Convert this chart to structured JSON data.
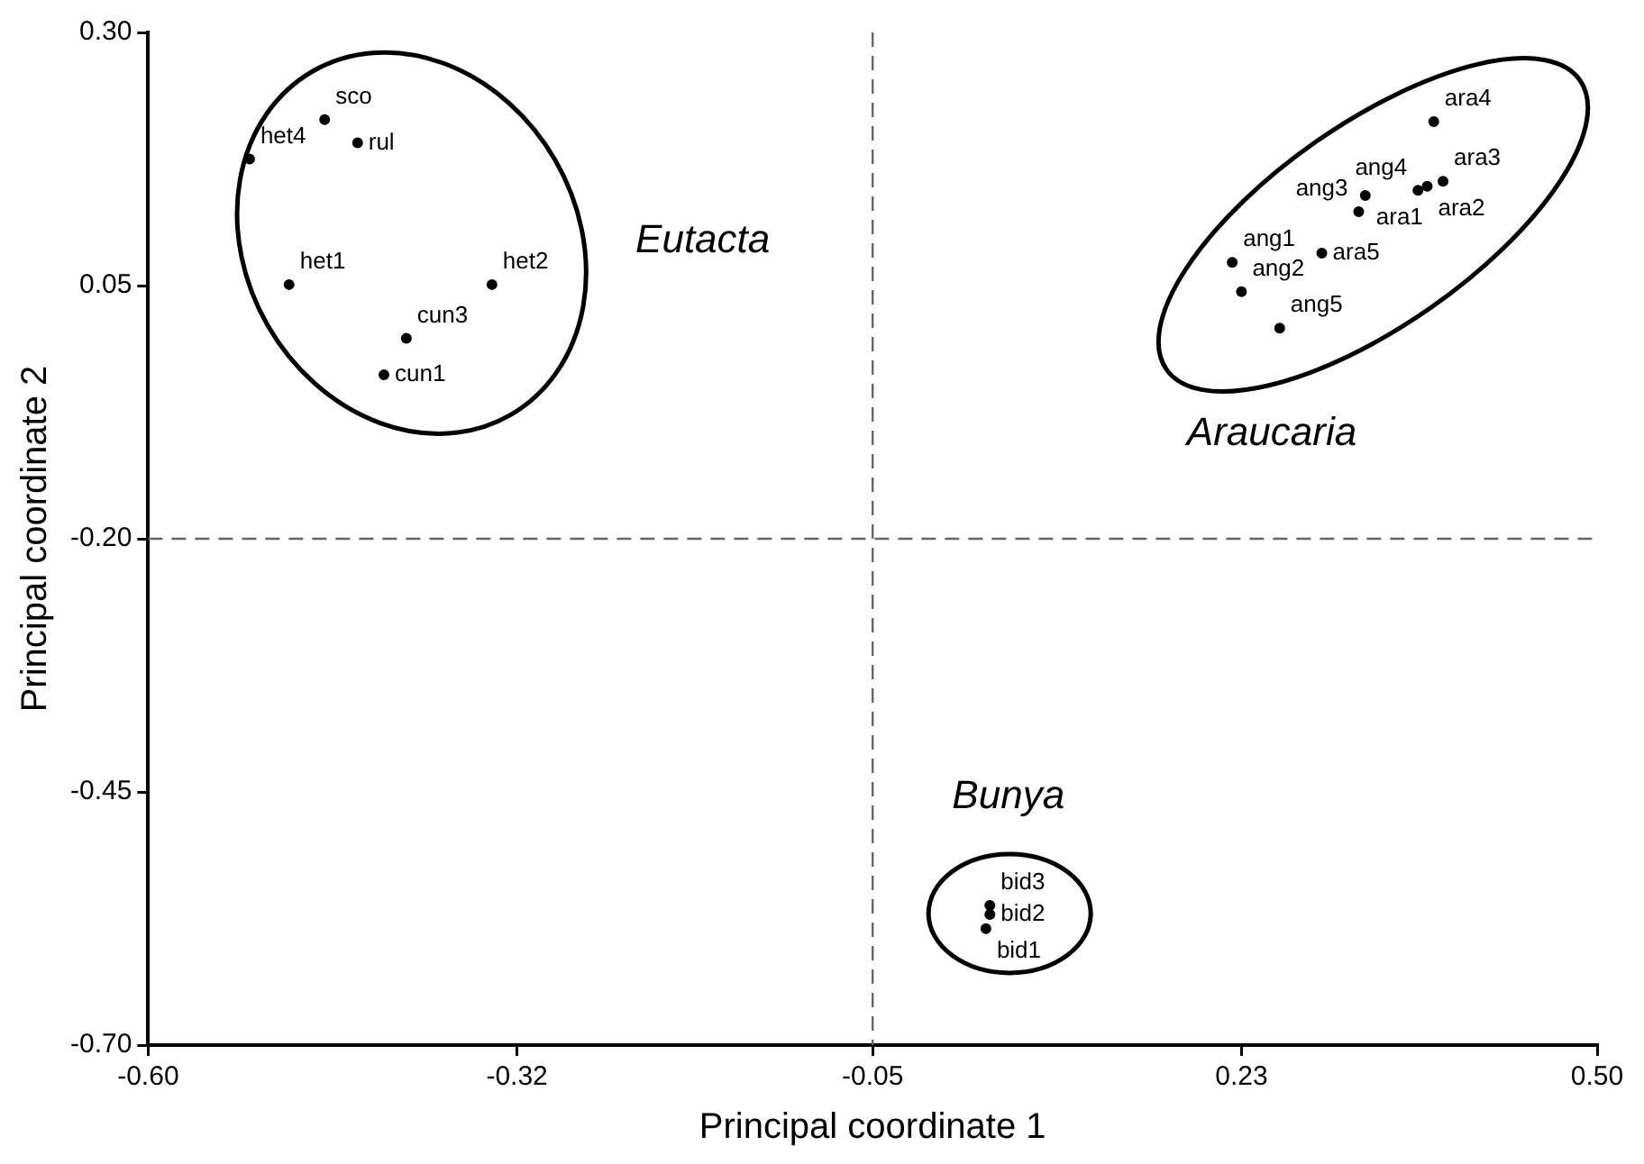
{
  "chart_data": {
    "type": "scatter",
    "xlabel": "Principal coordinate 1",
    "ylabel": "Principal coordinate 2",
    "xlim": [
      -0.6,
      0.5
    ],
    "xticks": [
      {
        "value": -0.6,
        "label": "-0.60"
      },
      {
        "value": -0.32,
        "label": "-0.32"
      },
      {
        "value": -0.05,
        "label": "-0.05"
      },
      {
        "value": 0.23,
        "label": "0.23"
      },
      {
        "value": 0.5,
        "label": "0.50"
      }
    ],
    "ylim": [
      -0.7,
      0.3
    ],
    "yticks": [
      {
        "value": -0.7,
        "label": "-0.70"
      },
      {
        "value": -0.45,
        "label": "-0.45"
      },
      {
        "value": -0.2,
        "label": "-0.20"
      },
      {
        "value": 0.05,
        "label": "0.05"
      },
      {
        "value": 0.3,
        "label": "0.30"
      }
    ],
    "grid": false,
    "legend": false,
    "marker": "circle",
    "series": [
      {
        "color": "#000000",
        "x": [
          -0.466,
          -0.441,
          -0.523,
          -0.493,
          -0.339,
          -0.404,
          -0.421,
          0.376,
          0.383,
          0.371,
          0.364,
          0.324,
          0.319,
          0.291,
          0.223,
          0.23,
          0.259,
          0.039,
          0.039,
          0.036
        ],
        "values": [
          0.214,
          0.191,
          0.175,
          0.051,
          0.051,
          -0.002,
          -0.038,
          0.212,
          0.153,
          0.148,
          0.144,
          0.139,
          0.123,
          0.082,
          0.073,
          0.044,
          0.008,
          -0.562,
          -0.571,
          -0.585
        ],
        "value_labels": [
          "sco",
          "rul",
          "het4",
          "het1",
          "het2",
          "cun3",
          "cun1",
          "ara4",
          "ara3",
          "ara2",
          "ang4",
          "ara1",
          "ang3",
          "ara5",
          "ang1",
          "ang2",
          "ang5",
          "bid3",
          "bid2",
          "bid1"
        ]
      }
    ],
    "ref_lines": [
      {
        "axis": "x",
        "value": -0.05,
        "line_style": "dashed",
        "color": "#666666"
      },
      {
        "axis": "y",
        "value": -0.2,
        "line_style": "dashed",
        "color": "#666666"
      }
    ],
    "annotations": [
      "Eutacta",
      "Araucaria",
      "Bunya"
    ]
  }
}
